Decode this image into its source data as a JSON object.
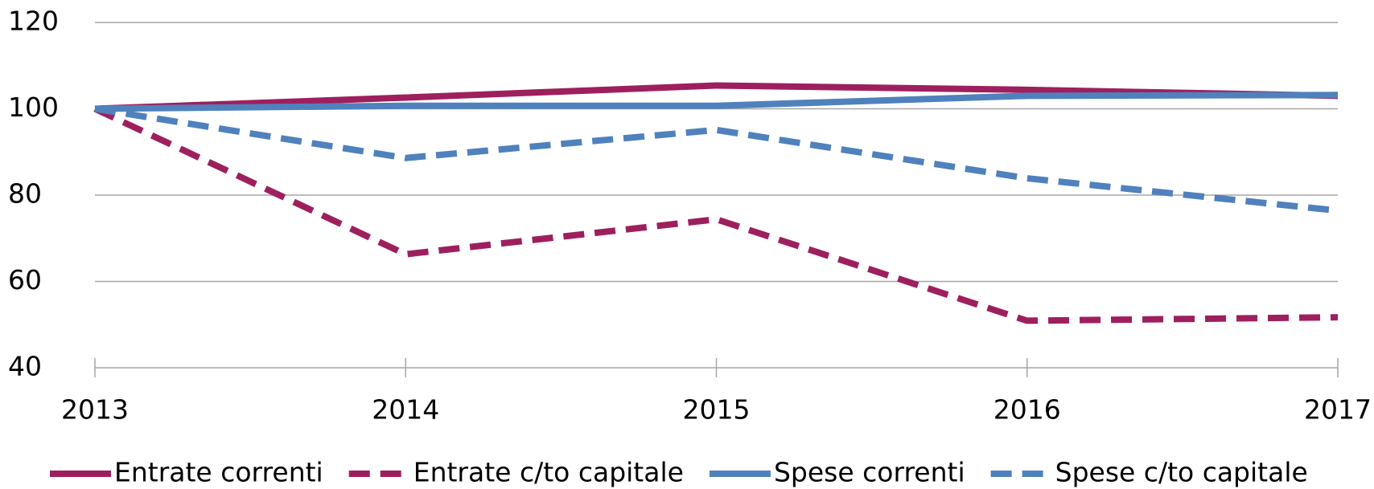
{
  "chart_data": {
    "type": "line",
    "categories": [
      "2013",
      "2014",
      "2015",
      "2016",
      "2017"
    ],
    "series": [
      {
        "name": "Entrate correnti",
        "color": "#9e1f5e",
        "dashed": false,
        "values": [
          100,
          102.6,
          105.4,
          104.4,
          103
        ]
      },
      {
        "name": "Entrate c/to capitale",
        "color": "#9e1f5e",
        "dashed": true,
        "values": [
          100,
          66.3,
          74.4,
          50.9,
          51.7
        ]
      },
      {
        "name": "Spese correnti",
        "color": "#4f81bd",
        "dashed": false,
        "values": [
          100,
          100.7,
          100.7,
          103,
          103.2
        ]
      },
      {
        "name": "Spese c/to capitale",
        "color": "#4f81bd",
        "dashed": true,
        "values": [
          100,
          88.6,
          95.1,
          83.9,
          76.4
        ]
      }
    ],
    "ylim": [
      40,
      120
    ],
    "yticks": [
      40,
      60,
      80,
      100,
      120
    ],
    "grid": true,
    "legend": "bottom"
  }
}
